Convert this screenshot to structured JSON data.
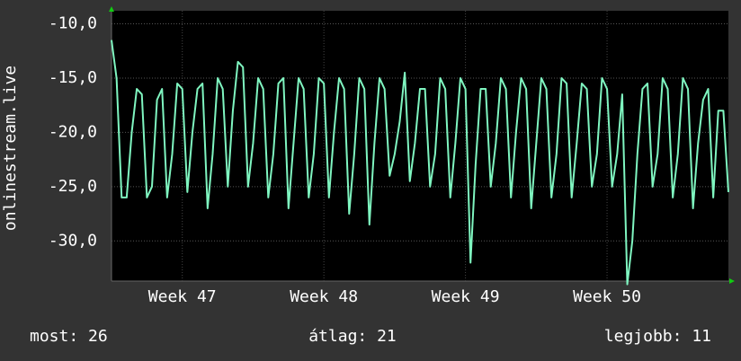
{
  "chart_data": {
    "type": "line",
    "y_label": "onlinestream.live",
    "color": "#7ff5c0",
    "x": [
      0,
      0.25,
      0.5,
      0.75,
      1,
      1.25,
      1.5,
      1.75,
      2,
      2.25,
      2.5,
      2.75,
      3,
      3.25,
      3.5,
      3.75,
      4,
      4.25,
      4.5,
      4.75,
      5,
      5.25,
      5.5,
      5.75,
      6,
      6.25,
      6.5,
      6.75,
      7,
      7.25,
      7.5,
      7.75,
      8,
      8.25,
      8.5,
      8.75,
      9,
      9.25,
      9.5,
      9.75,
      10,
      10.25,
      10.5,
      10.75,
      11,
      11.25,
      11.5,
      11.75,
      12,
      12.25,
      12.5,
      12.75,
      13,
      13.25,
      13.5,
      13.75,
      14,
      14.25,
      14.5,
      14.75,
      15,
      15.25,
      15.5,
      15.75,
      16,
      16.25,
      16.5,
      16.75,
      17,
      17.25,
      17.5,
      17.75,
      18,
      18.25,
      18.5,
      18.75,
      19,
      19.25,
      19.5,
      19.75,
      20,
      20.25,
      20.5,
      20.75,
      21,
      21.25,
      21.5,
      21.75,
      22,
      22.25,
      22.5,
      22.75,
      23,
      23.25,
      23.5,
      23.75,
      24,
      24.25,
      24.5,
      24.75,
      25,
      25.25,
      25.5,
      25.75,
      26,
      26.25,
      26.5,
      26.75,
      27,
      27.25,
      27.5,
      27.75,
      28,
      28.25,
      28.5,
      28.75,
      29,
      29.25,
      29.5,
      29.75,
      30,
      30.25,
      30.5
    ],
    "values": [
      -11.5,
      -15,
      -26,
      -26,
      -20,
      -16,
      -16.5,
      -26,
      -25,
      -17,
      -16,
      -26,
      -22,
      -15.5,
      -16,
      -25.5,
      -20,
      -16,
      -15.5,
      -27,
      -22,
      -15,
      -16,
      -25,
      -18,
      -13.5,
      -14,
      -25,
      -21,
      -15,
      -16,
      -26,
      -22,
      -15.5,
      -15,
      -27,
      -21,
      -15,
      -16,
      -26,
      -22,
      -15,
      -15.5,
      -26,
      -20,
      -15,
      -16,
      -27.5,
      -22,
      -15,
      -16,
      -28.5,
      -21,
      -15,
      -16,
      -24,
      -22,
      -19,
      -14.5,
      -24.5,
      -21,
      -16,
      -16,
      -25,
      -22,
      -15,
      -16,
      -26,
      -21,
      -15,
      -16,
      -32,
      -23,
      -16,
      -16,
      -25,
      -21,
      -15,
      -16,
      -26,
      -20,
      -15,
      -16,
      -27,
      -21,
      -15,
      -16,
      -26,
      -22,
      -15,
      -15.5,
      -26,
      -21,
      -15.5,
      -16,
      -25,
      -22,
      -15,
      -16,
      -25,
      -22,
      -16.5,
      -34,
      -30,
      -22,
      -16,
      -15.5,
      -25,
      -22,
      -15,
      -16,
      -26,
      -22,
      -15,
      -16,
      -27,
      -21,
      -17,
      -16,
      -26,
      -18,
      -18,
      -25.5
    ],
    "xlim": [
      0,
      30.5
    ],
    "xticks": [
      {
        "value": 3.5,
        "label": "Week 47"
      },
      {
        "value": 10.5,
        "label": "Week 48"
      },
      {
        "value": 17.5,
        "label": "Week 49"
      },
      {
        "value": 24.5,
        "label": "Week 50"
      }
    ],
    "ylim": [
      -33.7,
      -8.8
    ],
    "yticks": [
      {
        "value": -10,
        "label": "-10,0"
      },
      {
        "value": -15,
        "label": "-15,0"
      },
      {
        "value": -20,
        "label": "-20,0"
      },
      {
        "value": -25,
        "label": "-25,0"
      },
      {
        "value": -30,
        "label": "-30,0"
      }
    ],
    "grid": true,
    "footer": [
      "most: 26",
      "átlag: 21",
      "legjobb: 11"
    ]
  }
}
